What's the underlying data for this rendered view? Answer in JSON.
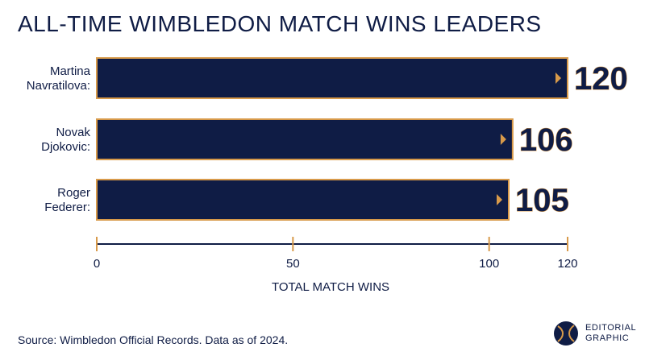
{
  "title": "ALL-TIME WIMBLEDON MATCH WINS LEADERS",
  "source": "Source: Wimbledon Official Records. Data as of 2024.",
  "logo": {
    "line1": "EDITORIAL",
    "line2": "GRAPHIC"
  },
  "colors": {
    "bar": "#0f1c45",
    "accent": "#d89a4a",
    "text": "#0f1c45"
  },
  "chart_data": {
    "type": "bar",
    "orientation": "horizontal",
    "categories": [
      [
        "Martina",
        "Navratilova:"
      ],
      [
        "Novak",
        "Djokovic:"
      ],
      [
        "Roger",
        "Federer:"
      ]
    ],
    "values": [
      120,
      106,
      105
    ],
    "xlabel": "TOTAL MATCH WINS",
    "xlim": [
      0,
      120
    ],
    "xticks": [
      0,
      50,
      100,
      120
    ],
    "grid": false
  }
}
